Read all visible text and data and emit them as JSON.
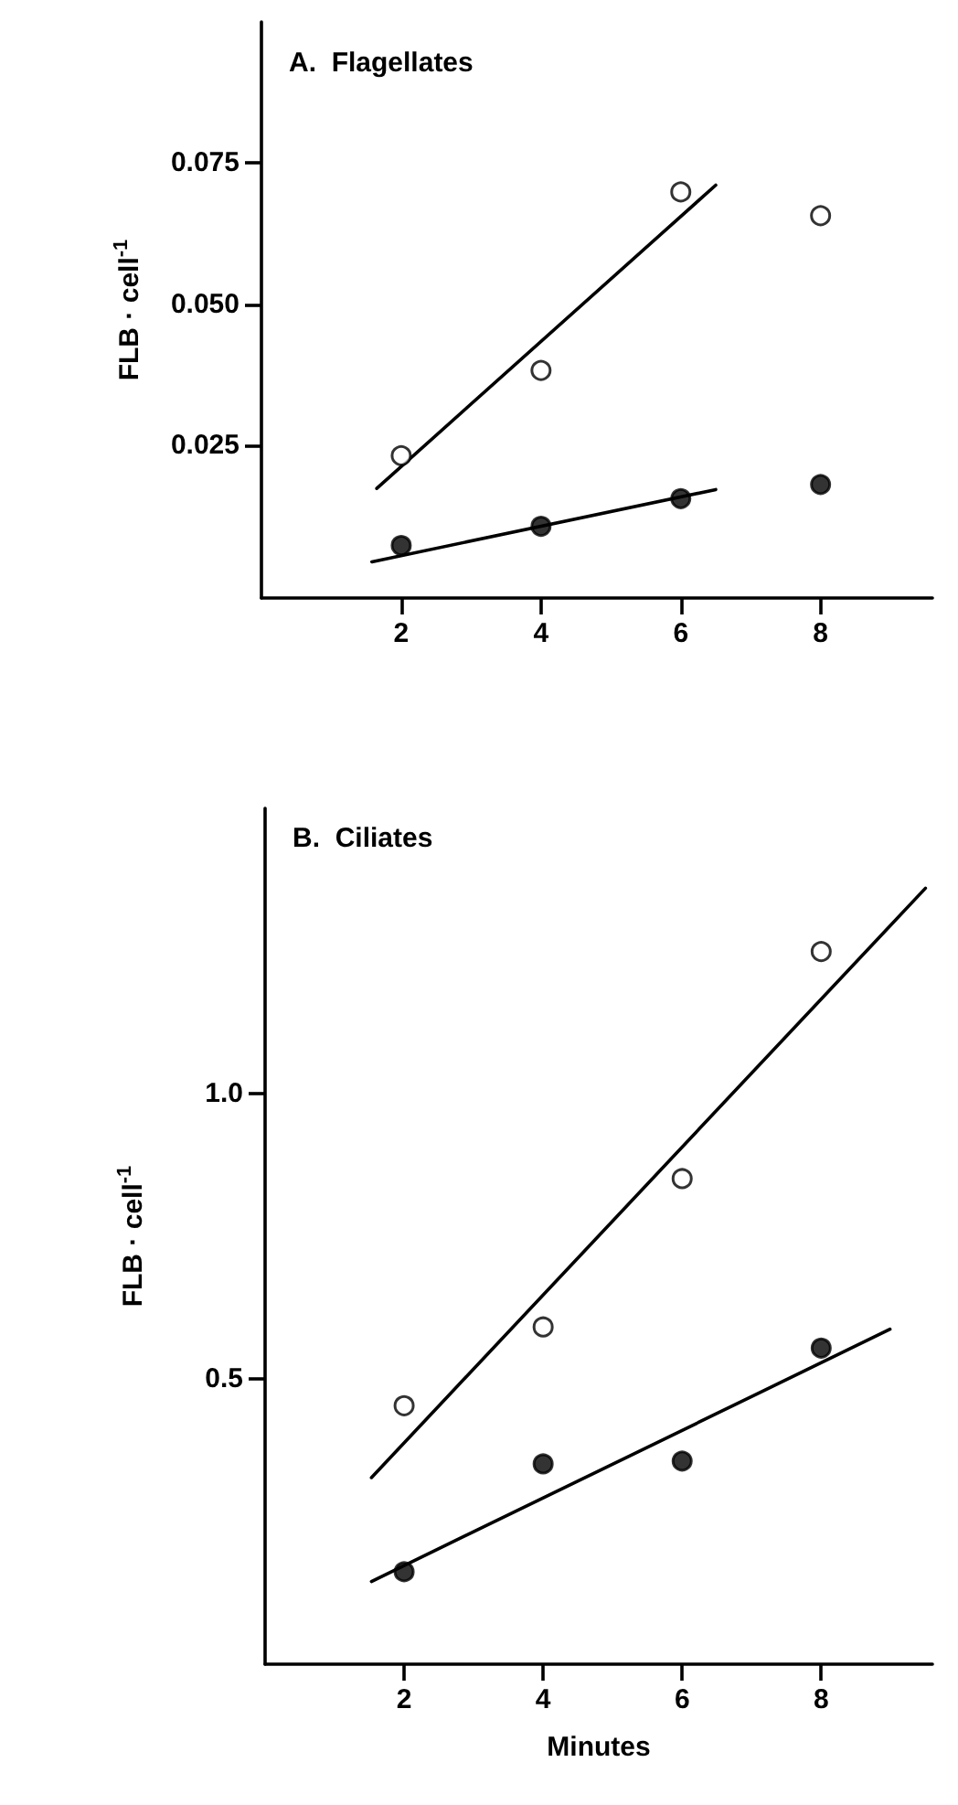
{
  "chart_data": [
    {
      "type": "scatter",
      "title": "A.  Flagellates",
      "ylabel": "FLB · cell$^{-1}$",
      "xlim": [
        0,
        9.6
      ],
      "xticks": [
        2,
        4,
        6,
        8
      ],
      "ylim": [
        -0.002,
        0.1
      ],
      "yticks": [
        {
          "value": 0.025,
          "label": "0.025"
        },
        {
          "value": 0.05,
          "label": "0.050"
        },
        {
          "value": 0.075,
          "label": "0.075"
        }
      ],
      "grid": false,
      "x": [
        2,
        4,
        6,
        8
      ],
      "series": [
        {
          "color": "#ffffff",
          "marker": "circle",
          "values": [
            0.0232,
            0.0383,
            0.0699,
            0.0657
          ]
        },
        {
          "color": "#000000",
          "marker": "circle",
          "values": [
            0.0073,
            0.0107,
            0.0156,
            0.0181
          ]
        },
        {
          "type": "line",
          "color": "#000000",
          "marker": "none",
          "x": [
            1.65,
            6.5
          ],
          "values": [
            0.0174,
            0.0711
          ]
        },
        {
          "type": "line",
          "color": "#000000",
          "marker": "none",
          "x": [
            1.58,
            6.5
          ],
          "values": [
            0.0044,
            0.0172
          ]
        }
      ]
    },
    {
      "type": "scatter",
      "title": "B.  Ciliates",
      "xlabel": "Minutes",
      "ylabel": "FLB · cell$^{-1}$",
      "xlim": [
        0,
        9.6
      ],
      "xticks": [
        2,
        4,
        6,
        8
      ],
      "ylim": [
        0,
        1.5
      ],
      "yticks": [
        {
          "value": 0.5,
          "label": "0.5"
        },
        {
          "value": 1,
          "label": "1.0"
        }
      ],
      "grid": false,
      "x": [
        2,
        4,
        6,
        8
      ],
      "series": [
        {
          "color": "#ffffff",
          "marker": "circle",
          "values": [
            0.453,
            0.591,
            0.851,
            1.249
          ]
        },
        {
          "color": "#000000",
          "marker": "circle",
          "values": [
            0.162,
            0.351,
            0.356,
            0.554
          ]
        },
        {
          "type": "line",
          "color": "#000000",
          "marker": "none",
          "x": [
            1.53,
            9.5
          ],
          "values": [
            0.327,
            1.36
          ]
        },
        {
          "type": "line",
          "color": "#000000",
          "marker": "none",
          "x": [
            1.53,
            8.99
          ],
          "values": [
            0.145,
            0.587
          ]
        }
      ]
    }
  ]
}
